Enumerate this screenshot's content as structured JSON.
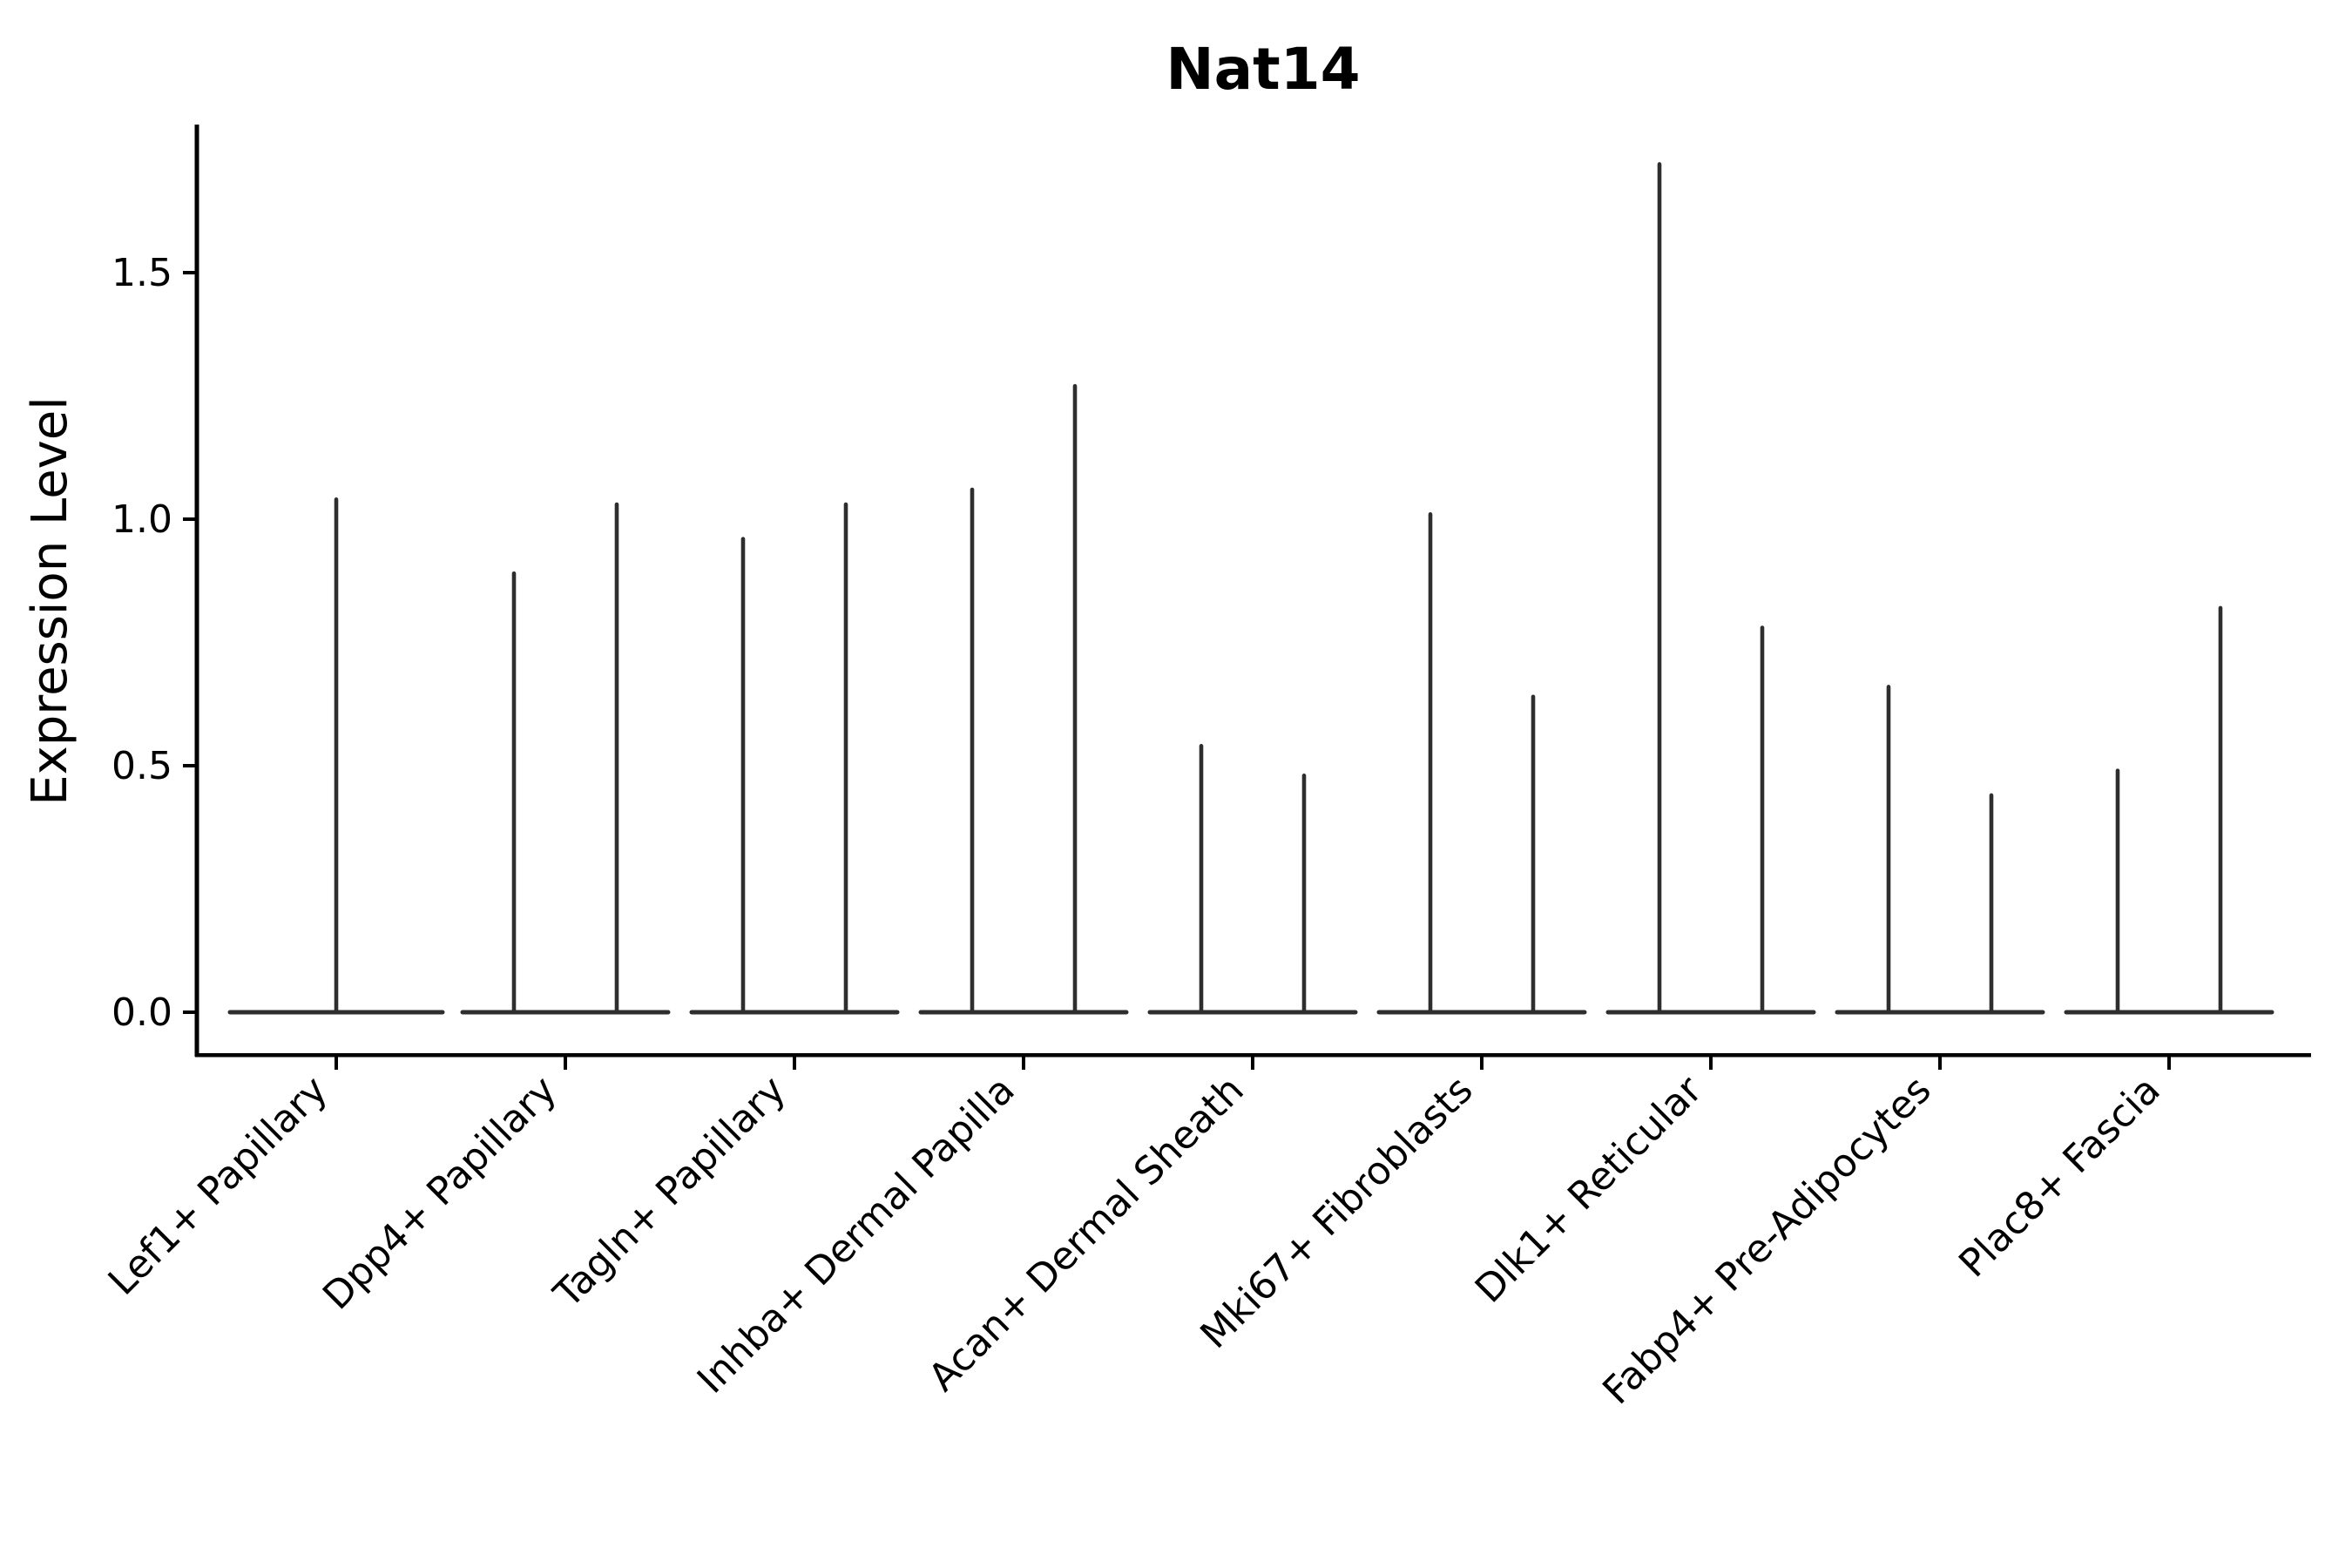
{
  "chart_data": {
    "type": "violin",
    "title": "Nat14",
    "ylabel": "Expression Level",
    "xlabel": "",
    "ylim": [
      -0.09,
      1.81
    ],
    "grid": false,
    "legend": "none",
    "yticks": [
      {
        "value": 0.0,
        "label": "0.0"
      },
      {
        "value": 0.5,
        "label": "0.5"
      },
      {
        "value": 1.0,
        "label": "1.0"
      },
      {
        "value": 1.5,
        "label": "1.5"
      }
    ],
    "baseline_value": 0.0,
    "violin_color": "#2e2e2e",
    "axis_color": "#000000",
    "categories": [
      "Lef1+ Papillary",
      "Dpp4+ Papillary",
      "Tagln+ Papillary",
      "Inhba+ Dermal Papilla",
      "Acan+ Dermal Sheath",
      "Mki67+ Fibroblasts",
      "Dlk1+ Reticular",
      "Fabp4+ Pre-Adipocytes",
      "Plac8+ Fascia"
    ],
    "violins": [
      {
        "category": "Lef1+ Papillary",
        "spike_maxima": [
          1.04
        ]
      },
      {
        "category": "Dpp4+ Papillary",
        "spike_maxima": [
          0.89,
          1.03
        ]
      },
      {
        "category": "Tagln+ Papillary",
        "spike_maxima": [
          0.96,
          1.03
        ]
      },
      {
        "category": "Inhba+ Dermal Papilla",
        "spike_maxima": [
          1.06,
          1.27
        ]
      },
      {
        "category": "Acan+ Dermal Sheath",
        "spike_maxima": [
          0.54,
          0.48
        ]
      },
      {
        "category": "Mki67+ Fibroblasts",
        "spike_maxima": [
          1.01,
          0.64
        ]
      },
      {
        "category": "Dlk1+ Reticular",
        "spike_maxima": [
          1.72,
          0.78
        ]
      },
      {
        "category": "Fabp4+ Pre-Adipocytes",
        "spike_maxima": [
          0.66,
          0.44
        ]
      },
      {
        "category": "Plac8+ Fascia",
        "spike_maxima": [
          0.49,
          0.82
        ]
      }
    ]
  }
}
